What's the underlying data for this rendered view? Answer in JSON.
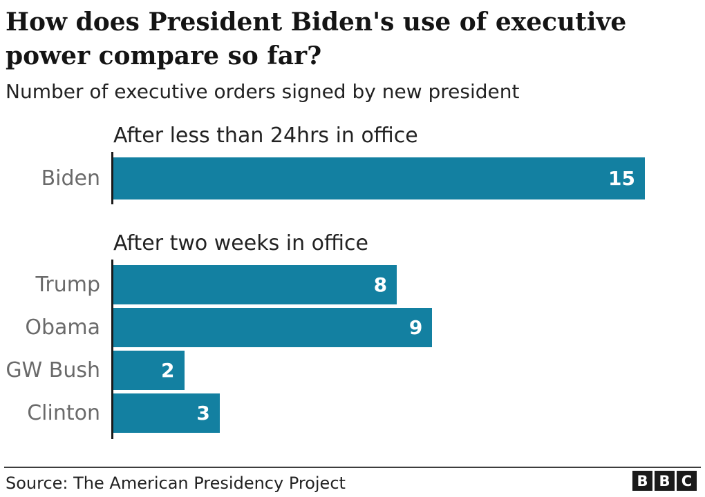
{
  "title": {
    "line1": "How does President Biden's use of executive",
    "line2": "power compare so far?"
  },
  "subtitle": "Number of executive orders signed by new president",
  "chart_data": {
    "type": "bar",
    "orientation": "horizontal",
    "title": "How does President Biden's use of executive power compare so far?",
    "subtitle": "Number of executive orders signed by new president",
    "scale_max": 15,
    "bar_color": "#1380A1",
    "value_label_color": "#ffffff",
    "category_label_color": "#6a6a6a",
    "axis_color": "#1a1a1a",
    "grid": false,
    "legend": false,
    "value_labels_position": "inside-end",
    "sections": [
      {
        "heading": "After less than 24hrs in office",
        "categories": [
          "Biden"
        ],
        "values": [
          15
        ]
      },
      {
        "heading": "After two weeks in office",
        "categories": [
          "Trump",
          "Obama",
          "GW Bush",
          "Clinton"
        ],
        "values": [
          8,
          9,
          2,
          3
        ]
      }
    ]
  },
  "footer": {
    "source": "Source: The American Presidency Project",
    "logo": [
      "B",
      "B",
      "C"
    ]
  }
}
